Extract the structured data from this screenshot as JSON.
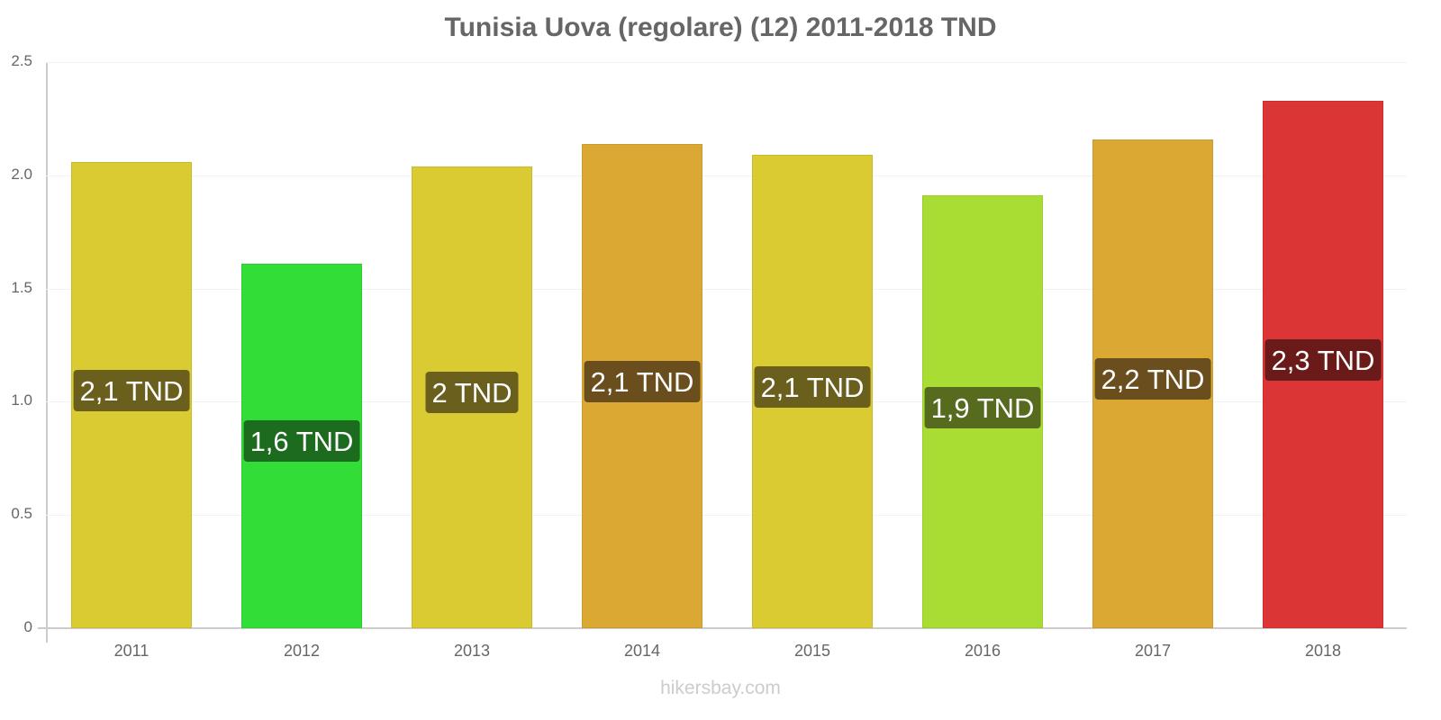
{
  "chart_data": {
    "type": "bar",
    "title": "Tunisia Uova (regolare) (12) 2011-2018 TND",
    "xlabel": "",
    "ylabel": "",
    "ylim": [
      0,
      2.5
    ],
    "yticks": [
      "0",
      "0.5",
      "1.0",
      "1.5",
      "2.0",
      "2.5"
    ],
    "categories": [
      "2011",
      "2012",
      "2013",
      "2014",
      "2015",
      "2016",
      "2017",
      "2018"
    ],
    "values": [
      2.06,
      1.61,
      2.04,
      2.14,
      2.09,
      1.91,
      2.16,
      2.33
    ],
    "data_labels": [
      "2,1 TND",
      "1,6 TND",
      "2 TND",
      "2,1 TND",
      "2,1 TND",
      "1,9 TND",
      "2,2 TND",
      "2,3 TND"
    ],
    "bar_colors": [
      "#dbcb33",
      "#33dd38",
      "#dbcb33",
      "#dba833",
      "#dbcb33",
      "#aadd33",
      "#dba833",
      "#dc3535"
    ],
    "label_colors": [
      "#6b5f1e",
      "#1c6b1e",
      "#6b5f1e",
      "#6b4e1e",
      "#6b5f1e",
      "#566b1e",
      "#6b4e1e",
      "#6b1a1a"
    ],
    "grid": true,
    "legend": null
  },
  "footer": {
    "credit": "hikersbay.com"
  }
}
